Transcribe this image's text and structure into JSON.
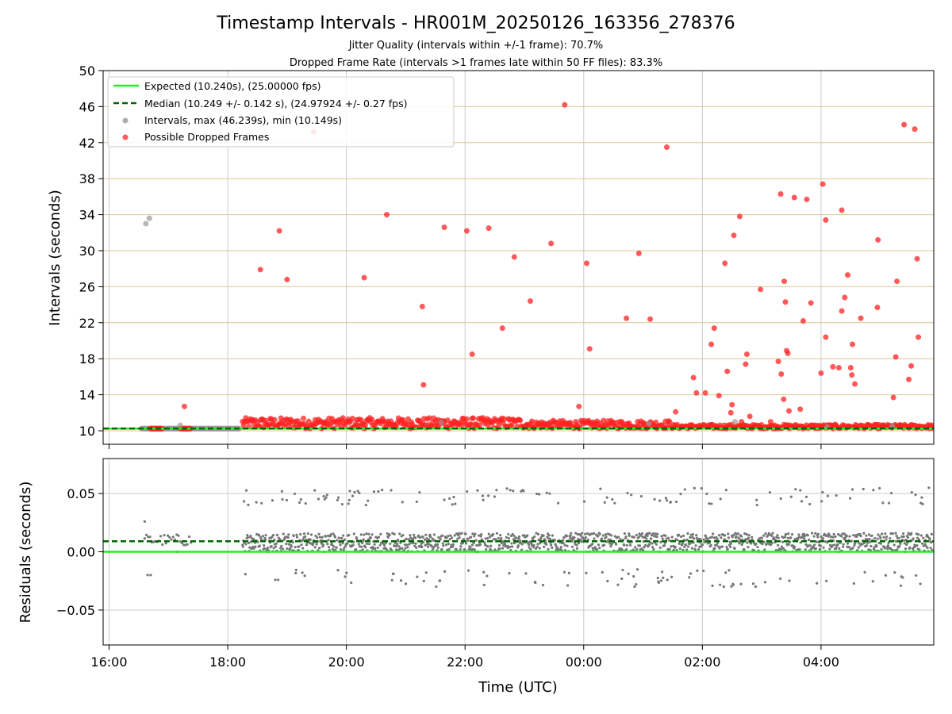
{
  "chart_data": {
    "title": "Timestamp Intervals - HR001M_20250126_163356_278376",
    "subtitles": [
      "Jitter Quality (intervals within +/-1 frame): 70.7%",
      "Dropped Frame Rate (intervals >1 frames late within 50 FF files): 83.3%"
    ],
    "x_axis": {
      "label": "Time (UTC)",
      "range_hours": [
        15.9,
        29.9
      ],
      "tick_hours": [
        16,
        18,
        20,
        22,
        24,
        26,
        28
      ],
      "tick_labels": [
        "16:00",
        "18:00",
        "20:00",
        "22:00",
        "00:00",
        "02:00",
        "04:00"
      ]
    },
    "panels": [
      {
        "type": "scatter",
        "name": "intervals",
        "ylabel": "Intervals (seconds)",
        "ylim": [
          8.5,
          50
        ],
        "yticks": [
          10,
          14,
          18,
          22,
          26,
          30,
          34,
          38,
          42,
          46,
          50
        ],
        "grid": true,
        "legend_position": "upper-left",
        "legend": [
          "Expected (10.240s), (25.00000 fps)",
          "Median (10.249 +/- 0.142 s), (24.97924 +/- 0.27 fps)",
          "Intervals, max (46.239s), min (10.149s)",
          "Possible Dropped Frames"
        ],
        "expected": 10.24,
        "median": 10.249,
        "grey_points": [
          [
            16.62,
            33.0
          ],
          [
            16.68,
            33.6
          ],
          [
            17.2,
            10.6
          ],
          [
            21.6,
            10.9
          ],
          [
            25.1,
            10.8
          ],
          [
            26.55,
            11.0
          ],
          [
            28.1,
            10.4
          ],
          [
            29.2,
            10.5
          ]
        ],
        "red_points": [
          [
            17.27,
            12.7
          ],
          [
            18.55,
            27.9
          ],
          [
            18.87,
            32.2
          ],
          [
            19.0,
            26.8
          ],
          [
            19.45,
            43.2
          ],
          [
            20.3,
            27.0
          ],
          [
            20.68,
            34.0
          ],
          [
            21.28,
            23.8
          ],
          [
            21.3,
            15.1
          ],
          [
            21.65,
            32.6
          ],
          [
            22.03,
            32.2
          ],
          [
            22.12,
            18.5
          ],
          [
            22.4,
            32.5
          ],
          [
            22.63,
            21.4
          ],
          [
            22.83,
            29.3
          ],
          [
            23.1,
            24.4
          ],
          [
            23.45,
            30.8
          ],
          [
            23.92,
            12.7
          ],
          [
            24.05,
            28.6
          ],
          [
            24.1,
            19.1
          ],
          [
            24.72,
            22.5
          ],
          [
            24.93,
            29.7
          ],
          [
            25.12,
            22.4
          ],
          [
            25.4,
            41.5
          ],
          [
            25.55,
            12.1
          ],
          [
            25.85,
            15.9
          ],
          [
            25.9,
            14.2
          ],
          [
            26.05,
            14.2
          ],
          [
            26.15,
            19.6
          ],
          [
            26.2,
            21.4
          ],
          [
            26.28,
            13.9
          ],
          [
            26.38,
            28.6
          ],
          [
            26.42,
            16.6
          ],
          [
            26.48,
            12.0
          ],
          [
            26.5,
            12.9
          ],
          [
            26.53,
            31.7
          ],
          [
            26.63,
            33.8
          ],
          [
            26.66,
            11.0
          ],
          [
            26.73,
            17.4
          ],
          [
            26.75,
            18.5
          ],
          [
            26.8,
            11.6
          ],
          [
            26.98,
            25.7
          ],
          [
            27.15,
            11.0
          ],
          [
            27.28,
            17.7
          ],
          [
            27.32,
            36.3
          ],
          [
            27.33,
            16.3
          ],
          [
            27.37,
            13.5
          ],
          [
            27.38,
            26.6
          ],
          [
            27.4,
            24.3
          ],
          [
            27.42,
            18.9
          ],
          [
            27.44,
            18.6
          ],
          [
            27.46,
            12.2
          ],
          [
            27.55,
            35.9
          ],
          [
            27.65,
            12.4
          ],
          [
            27.7,
            22.2
          ],
          [
            27.76,
            35.7
          ],
          [
            27.83,
            24.2
          ],
          [
            28.0,
            16.4
          ],
          [
            28.03,
            37.4
          ],
          [
            28.08,
            33.4
          ],
          [
            28.08,
            20.4
          ],
          [
            28.2,
            17.1
          ],
          [
            28.3,
            17.0
          ],
          [
            28.35,
            34.5
          ],
          [
            28.35,
            23.3
          ],
          [
            28.4,
            24.8
          ],
          [
            28.45,
            27.3
          ],
          [
            28.5,
            17.0
          ],
          [
            28.53,
            19.6
          ],
          [
            28.52,
            16.2
          ],
          [
            28.57,
            15.2
          ],
          [
            28.67,
            22.5
          ],
          [
            28.95,
            23.7
          ],
          [
            28.96,
            31.2
          ],
          [
            29.22,
            13.7
          ],
          [
            29.26,
            18.2
          ],
          [
            29.28,
            26.6
          ],
          [
            29.4,
            44.0
          ],
          [
            29.48,
            15.7
          ],
          [
            29.52,
            17.2
          ],
          [
            29.58,
            43.5
          ],
          [
            29.62,
            29.1
          ],
          [
            29.64,
            20.4
          ],
          [
            23.68,
            46.2
          ]
        ]
      },
      {
        "type": "scatter",
        "name": "residuals",
        "ylabel": "Residuals (seconds)",
        "ylim": [
          -0.08,
          0.08
        ],
        "yticks": [
          -0.05,
          0.0,
          0.05
        ],
        "ytick_labels": [
          "−0.05",
          "0.00",
          "0.05"
        ],
        "grid": true,
        "expected": 0.0,
        "median": 0.009
      }
    ]
  }
}
